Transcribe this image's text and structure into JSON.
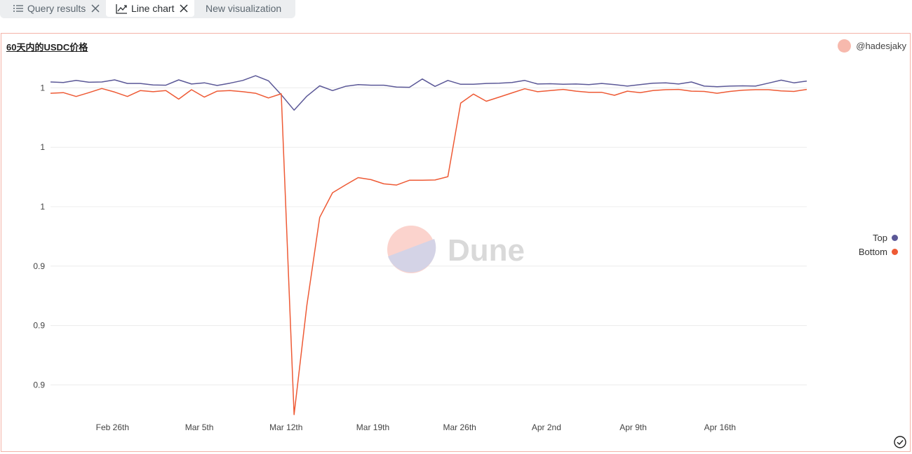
{
  "tabs": [
    {
      "label": "Query results",
      "icon": "list-icon",
      "closable": true
    },
    {
      "label": "Line chart",
      "icon": "line-chart-icon",
      "closable": true,
      "active": true
    },
    {
      "label": "New visualization",
      "icon": "",
      "closable": false
    }
  ],
  "author": "@hadesjaky",
  "watermark": "Dune",
  "colors": {
    "top": "#5b5897",
    "bottom": "#ee5a35",
    "watermark_pink": "#fbd3cd",
    "watermark_purple": "#d4d3e6"
  },
  "chart_data": {
    "type": "line",
    "title": "60天内的USDC价格",
    "xlabel": "",
    "ylabel": "",
    "x_ticks": [
      "Feb 26th",
      "Mar 5th",
      "Mar 12th",
      "Mar 19th",
      "Mar 26th",
      "Apr 2nd",
      "Apr 9th",
      "Apr 16th"
    ],
    "y_ticks": [
      "1",
      "1",
      "1",
      "0.9",
      "0.9",
      "0.9"
    ],
    "y_tick_values": [
      1.0,
      0.98,
      0.96,
      0.94,
      0.92,
      0.9
    ],
    "ylim": [
      0.889,
      1.006
    ],
    "x_range": [
      "2023-02-21",
      "2023-04-23"
    ],
    "grid": true,
    "legend_position": "right",
    "series": [
      {
        "name": "Top",
        "color": "#5b5897",
        "values": [
          1.002,
          1.0018,
          1.0025,
          1.0019,
          1.002,
          1.0027,
          1.0015,
          1.0015,
          1.001,
          1.0009,
          1.0027,
          1.0013,
          1.0017,
          1.0008,
          1.0016,
          1.0025,
          1.0041,
          1.0024,
          0.9977,
          0.9925,
          0.9972,
          1.0007,
          0.9991,
          1.0005,
          1.0011,
          1.0009,
          1.0009,
          1.0003,
          1.0002,
          1.003,
          1.0005,
          1.0025,
          1.0012,
          1.0012,
          1.0015,
          1.0016,
          1.0018,
          1.0025,
          1.0013,
          1.0014,
          1.0012,
          1.0013,
          1.0011,
          1.0015,
          1.0011,
          1.0006,
          1.0011,
          1.0016,
          1.0017,
          1.0013,
          1.002,
          1.0006,
          1.0004,
          1.0006,
          1.0007,
          1.0006,
          1.0016,
          1.0026,
          1.0017,
          1.0023
        ]
      },
      {
        "name": "Bottom",
        "color": "#ee5a35",
        "values": [
          0.9982,
          0.9984,
          0.9971,
          0.9984,
          0.9998,
          0.9986,
          0.9971,
          0.9991,
          0.9987,
          0.9991,
          0.9962,
          0.9994,
          0.9969,
          0.9989,
          0.9991,
          0.9987,
          0.9982,
          0.9966,
          0.998,
          0.89,
          0.9268,
          0.9564,
          0.9647,
          0.9673,
          0.9698,
          0.9691,
          0.9677,
          0.9673,
          0.9689,
          0.9689,
          0.969,
          0.9701,
          0.9949,
          0.9979,
          0.9955,
          0.9969,
          0.9983,
          0.9997,
          0.9987,
          0.9991,
          0.9995,
          0.9989,
          0.9985,
          0.9985,
          0.9975,
          0.9989,
          0.9984,
          0.9991,
          0.9994,
          0.9995,
          0.9989,
          0.9988,
          0.9982,
          0.9988,
          0.9992,
          0.9994,
          0.9994,
          0.999,
          0.9988,
          0.9995
        ]
      }
    ]
  }
}
